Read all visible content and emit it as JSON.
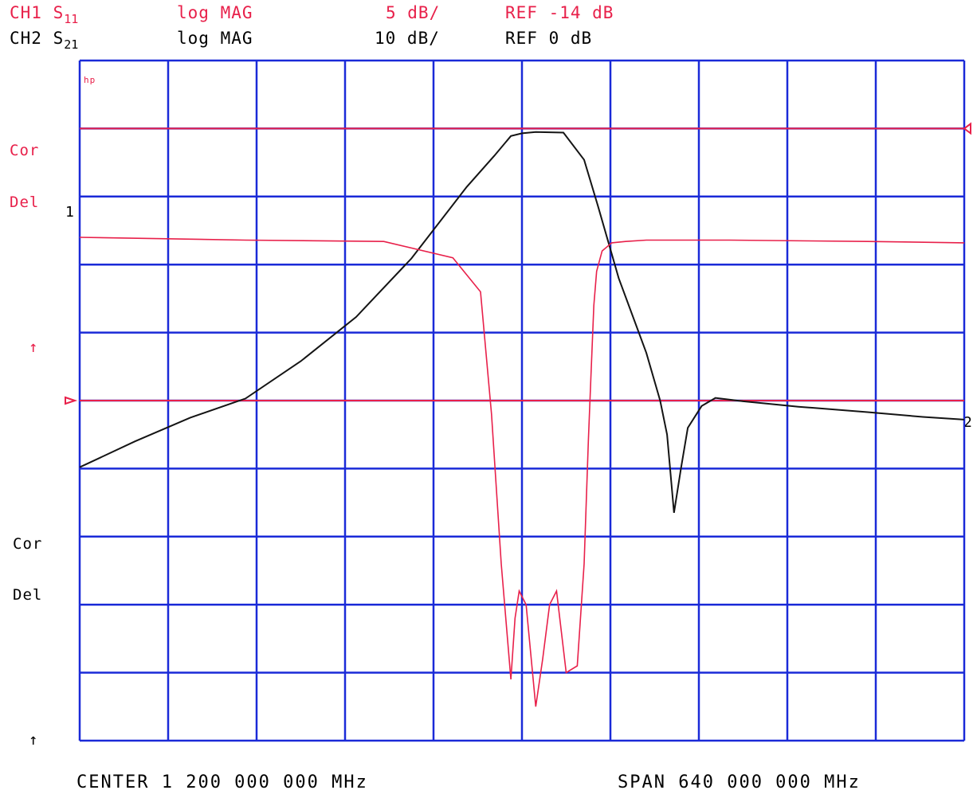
{
  "header": {
    "ch1": {
      "label": "CH1",
      "param": "S",
      "param_sub": "11",
      "format": "log MAG",
      "scale": "5 dB/",
      "ref": "REF -14 dB"
    },
    "ch2": {
      "label": "CH2",
      "param": "S",
      "param_sub": "21",
      "format": "log MAG",
      "scale": "10 dB/",
      "ref": "REF 0 dB"
    }
  },
  "side": {
    "cor_top": "Cor",
    "del_top": "Del",
    "marker_one": "1",
    "arrow_up_top": "↑",
    "cor_bottom": "Cor",
    "del_bottom": "Del",
    "arrow_up_bottom": "↑",
    "hp_logo": "hp",
    "marker_two": "2"
  },
  "footer": {
    "center": "CENTER 1 200 000 000 MHz",
    "span": "SPAN  640 000 000 MHz"
  },
  "colors": {
    "grid": "#1a2ad8",
    "ch1": "#e8204a",
    "ch2": "#141414"
  },
  "chart_data": {
    "type": "line",
    "grid": true,
    "x_center_mhz": 1200,
    "x_span_mhz": 640,
    "xlim": [
      880,
      1520
    ],
    "x_divisions": 10,
    "y_divisions": 10,
    "series": [
      {
        "name": "S11",
        "channel": "CH1",
        "scale_db_per_div": 5,
        "ref_db": -14,
        "ref_division": 5,
        "ylim": [
          -39,
          11
        ],
        "x": [
          880,
          1000,
          1100,
          1150,
          1170,
          1178,
          1185,
          1192,
          1195,
          1198,
          1203,
          1210,
          1215,
          1220,
          1225,
          1232,
          1240,
          1245,
          1248,
          1250,
          1252,
          1254,
          1258,
          1265,
          1275,
          1290,
          1350,
          1450,
          1520
        ],
        "y": [
          -2,
          -2.2,
          -2.3,
          -3.5,
          -6,
          -15,
          -26,
          -34.5,
          -30,
          -28,
          -29,
          -36.5,
          -33,
          -29,
          -28,
          -34,
          -33.5,
          -26,
          -17,
          -12,
          -7,
          -4.5,
          -3,
          -2.4,
          -2.3,
          -2.2,
          -2.2,
          -2.3,
          -2.4
        ]
      },
      {
        "name": "S21",
        "channel": "CH2",
        "scale_db_per_div": 10,
        "ref_db": 0,
        "ref_division": 5,
        "ylim": [
          -50,
          50
        ],
        "x": [
          880,
          920,
          960,
          1000,
          1040,
          1080,
          1120,
          1160,
          1180,
          1192,
          1200,
          1210,
          1230,
          1245,
          1255,
          1270,
          1290,
          1300,
          1305,
          1310,
          1315,
          1320,
          1330,
          1340,
          1360,
          1400,
          1450,
          1490,
          1520
        ],
        "y": [
          -9.8,
          -6,
          -2.5,
          0.3,
          5.8,
          12.3,
          20.9,
          31.4,
          36,
          38.9,
          39.3,
          39.5,
          39.4,
          35.4,
          28.6,
          18,
          7,
          0,
          -5,
          -16.5,
          -10,
          -4,
          -0.8,
          0.4,
          -0.1,
          -0.9,
          -1.7,
          -2.4,
          -2.8
        ]
      }
    ]
  }
}
